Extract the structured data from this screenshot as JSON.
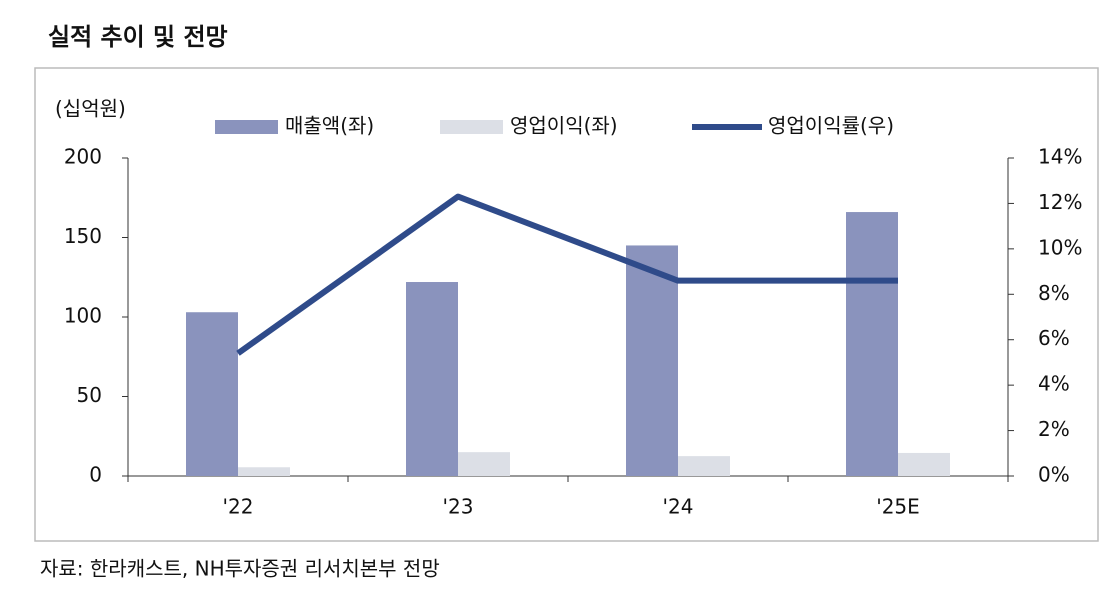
{
  "chart_data": {
    "type": "bar",
    "title": "실적 추이 및 전망",
    "unit_label": "(십억원)",
    "source": "자료: 한라캐스트, NH투자증권 리서치본부 전망",
    "categories": [
      "'22",
      "'23",
      "'24",
      "'25E"
    ],
    "series": [
      {
        "name": "매출액(좌)",
        "color": "#8a93bd",
        "values": [
          103,
          122,
          145,
          166
        ]
      },
      {
        "name": "영업이익(좌)",
        "color": "#dcdfe6",
        "values": [
          5.5,
          15,
          12.5,
          14.5
        ]
      },
      {
        "name": "영업이익률(우)",
        "color": "#2f4b8a",
        "type": "line",
        "axis": "y2",
        "values": [
          5.4,
          12.3,
          8.6,
          8.6
        ]
      }
    ],
    "ylim": [
      0,
      200
    ],
    "yticks": [
      0,
      50,
      100,
      150,
      200
    ],
    "y2lim": [
      0,
      14
    ],
    "y2ticks": [
      {
        "value": 0,
        "label": "0%"
      },
      {
        "value": 2,
        "label": "2%"
      },
      {
        "value": 4,
        "label": "4%"
      },
      {
        "value": 6,
        "label": "6%"
      },
      {
        "value": 8,
        "label": "8%"
      },
      {
        "value": 10,
        "label": "10%"
      },
      {
        "value": 12,
        "label": "12%"
      },
      {
        "value": 14,
        "label": "14%"
      }
    ],
    "grid": false
  }
}
